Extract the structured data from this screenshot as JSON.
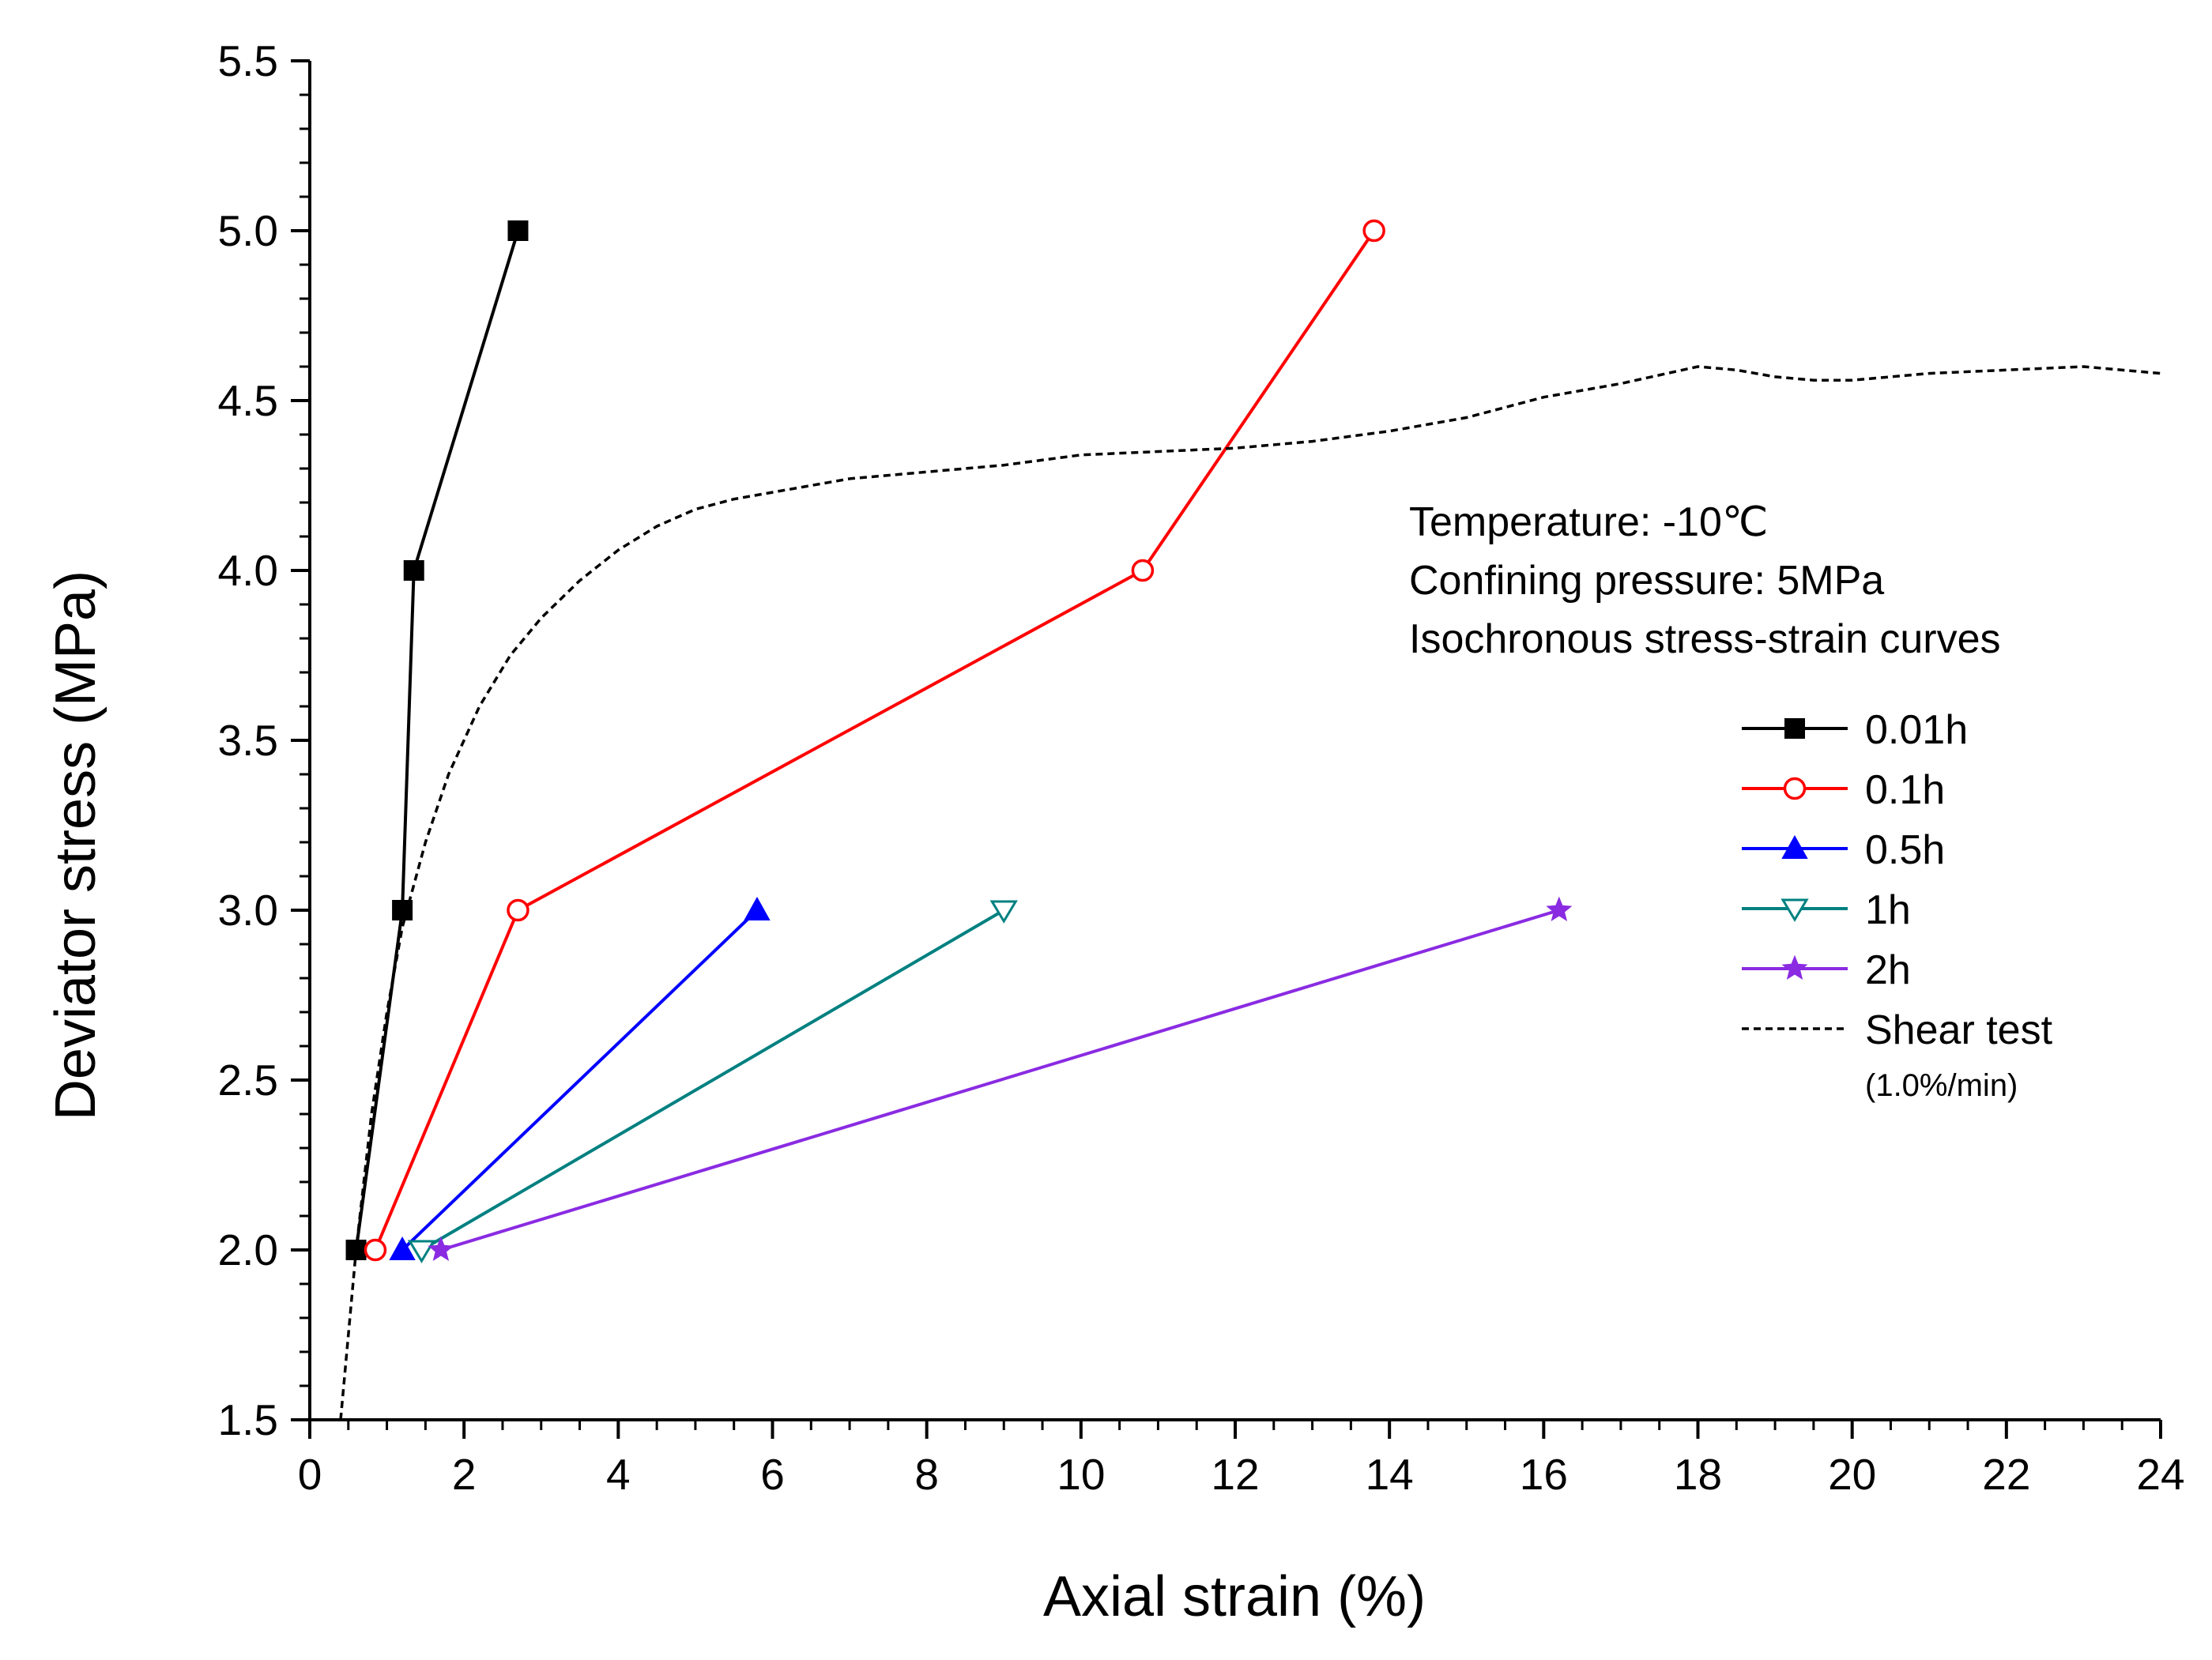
{
  "chart_data": {
    "type": "line",
    "xlabel": "Axial strain (%)",
    "ylabel": "Deviator stress (MPa)",
    "xlim": [
      0,
      24
    ],
    "ylim": [
      1.5,
      5.5
    ],
    "xticks": [
      0,
      2,
      4,
      6,
      8,
      10,
      12,
      14,
      16,
      18,
      20,
      22,
      24
    ],
    "yticks": [
      1.5,
      2.0,
      2.5,
      3.0,
      3.5,
      4.0,
      4.5,
      5.0,
      5.5
    ],
    "xtick_labels": [
      "0",
      "2",
      "4",
      "6",
      "8",
      "10",
      "12",
      "14",
      "16",
      "18",
      "20",
      "22",
      "24"
    ],
    "ytick_labels": [
      "1.5",
      "2.0",
      "2.5",
      "3.0",
      "3.5",
      "4.0",
      "4.5",
      "5.0",
      "5.5"
    ],
    "annotations": [
      "Temperature: -10℃",
      "Confining pressure: 5MPa",
      "Isochronous stress-strain curves"
    ],
    "legend_position": "right",
    "series": [
      {
        "name": "0.01h",
        "color": "#000000",
        "marker": "square-filled",
        "x": [
          0.6,
          1.2,
          1.35,
          2.7
        ],
        "y": [
          2.0,
          3.0,
          4.0,
          5.0
        ]
      },
      {
        "name": "0.1h",
        "color": "#ff0000",
        "marker": "circle-open",
        "x": [
          0.85,
          2.7,
          10.8,
          13.8
        ],
        "y": [
          2.0,
          3.0,
          4.0,
          5.0
        ]
      },
      {
        "name": "0.5h",
        "color": "#0000ff",
        "marker": "triangle-up-filled",
        "x": [
          1.2,
          5.8
        ],
        "y": [
          2.0,
          3.0
        ]
      },
      {
        "name": "1h",
        "color": "#008080",
        "marker": "triangle-down-open",
        "x": [
          1.45,
          9.0
        ],
        "y": [
          2.0,
          3.0
        ]
      },
      {
        "name": "2h",
        "color": "#8a2be2",
        "marker": "star-filled",
        "x": [
          1.7,
          16.2
        ],
        "y": [
          2.0,
          3.0
        ]
      },
      {
        "name": "Shear test",
        "sublabel": "(1.0%/min)",
        "color": "#000000",
        "marker": "none",
        "dashed": true,
        "x": [
          0.4,
          0.6,
          0.8,
          1.0,
          1.2,
          1.5,
          1.8,
          2.2,
          2.6,
          3.0,
          3.5,
          4.0,
          4.5,
          5.0,
          5.5,
          6.0,
          7.0,
          8.0,
          9.0,
          10.0,
          11.0,
          12.0,
          13.0,
          14.0,
          15.0,
          16.0,
          17.0,
          18.0,
          18.5,
          19.0,
          19.5,
          20.0,
          21.0,
          22.0,
          23.0,
          24.0
        ],
        "y": [
          1.5,
          2.0,
          2.4,
          2.7,
          2.95,
          3.2,
          3.4,
          3.6,
          3.75,
          3.86,
          3.97,
          4.06,
          4.13,
          4.18,
          4.21,
          4.23,
          4.27,
          4.29,
          4.31,
          4.34,
          4.35,
          4.36,
          4.38,
          4.41,
          4.45,
          4.51,
          4.55,
          4.6,
          4.59,
          4.57,
          4.56,
          4.56,
          4.58,
          4.59,
          4.6,
          4.58
        ]
      }
    ]
  }
}
